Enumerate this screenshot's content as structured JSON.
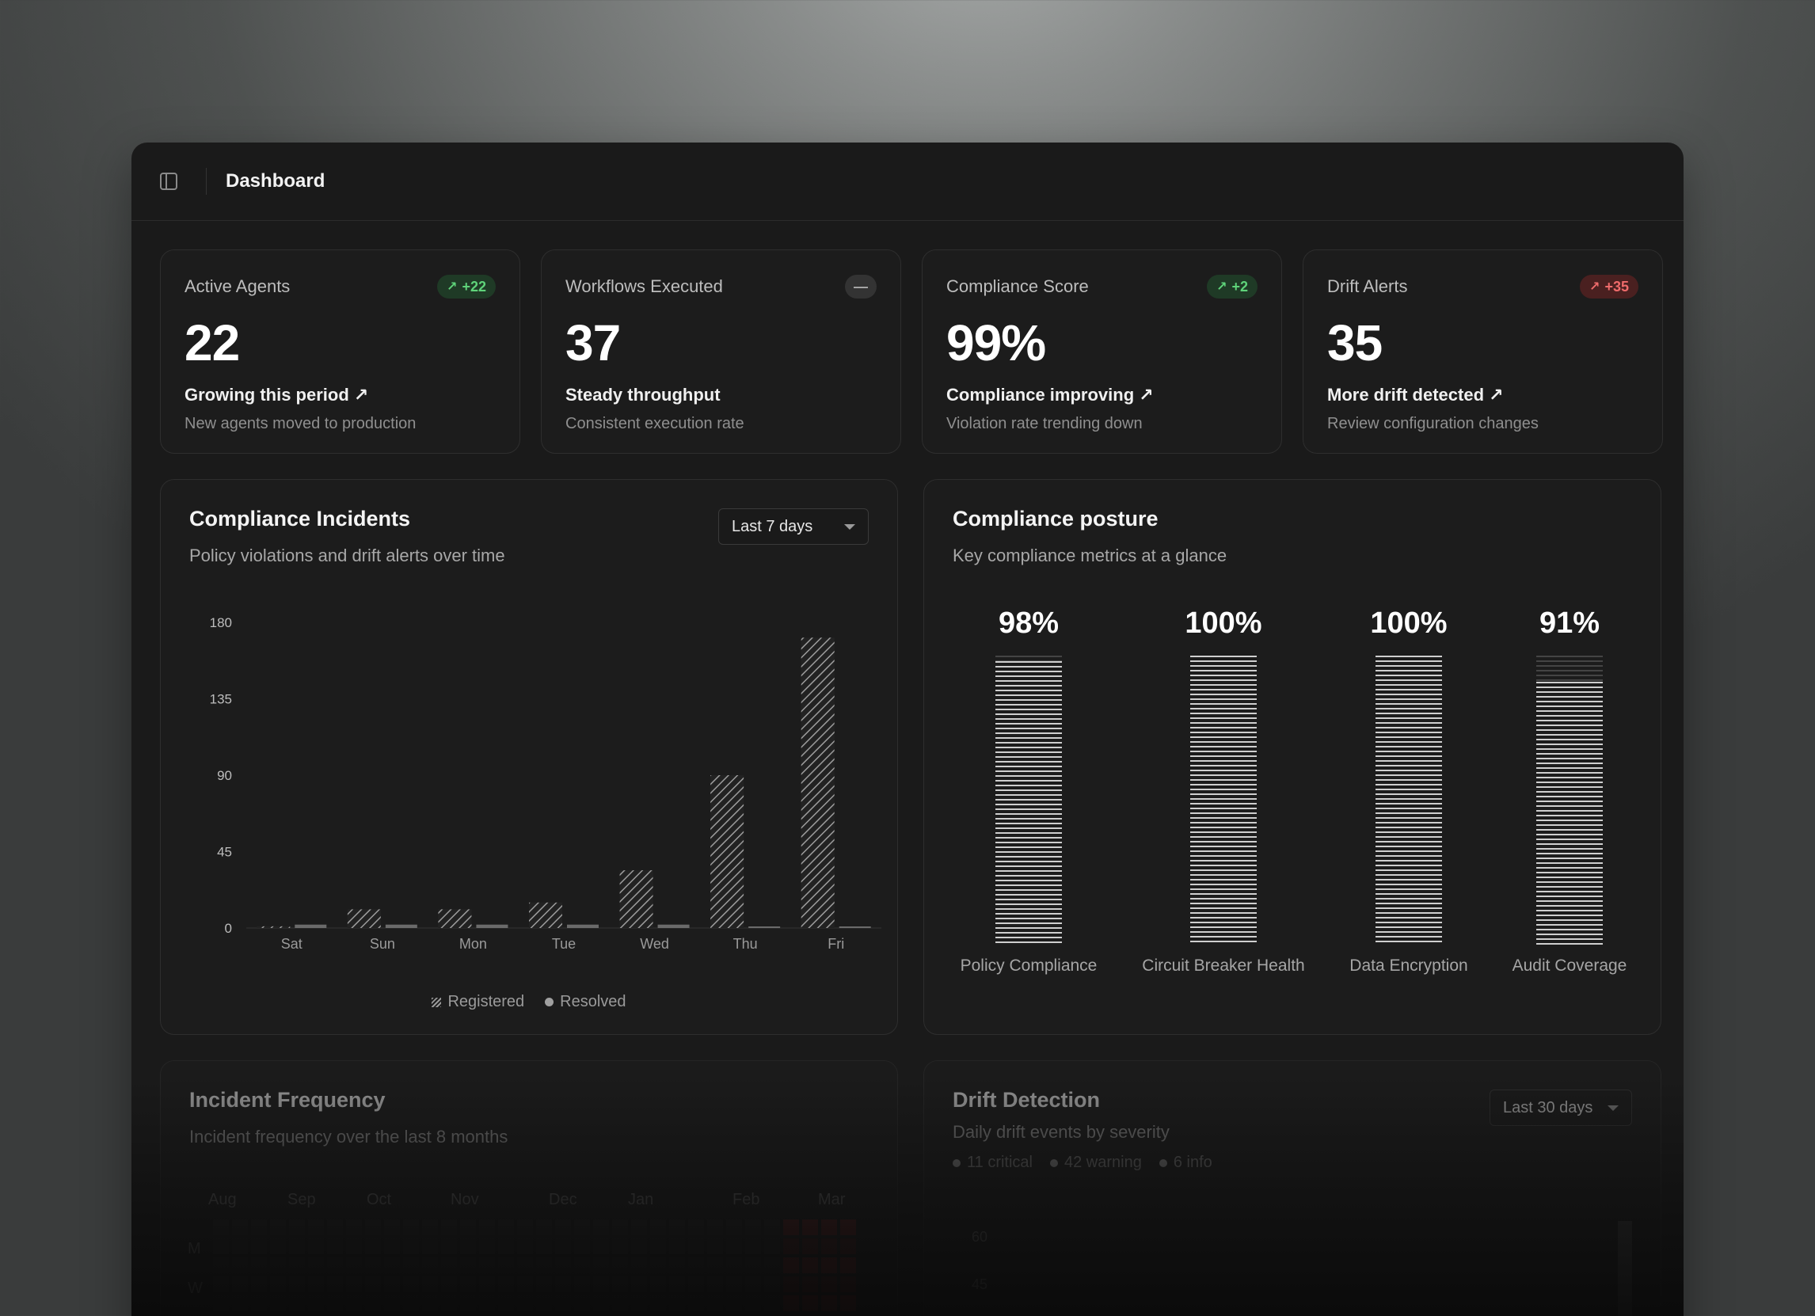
{
  "header": {
    "title": "Dashboard"
  },
  "stats": [
    {
      "label": "Active Agents",
      "badge": "+22",
      "badge_tone": "green",
      "value": "22",
      "trend": "Growing this period",
      "sub": "New agents moved to production"
    },
    {
      "label": "Workflows Executed",
      "badge": "—",
      "badge_tone": "neutral",
      "value": "37",
      "trend": "Steady throughput",
      "sub": "Consistent execution rate"
    },
    {
      "label": "Compliance Score",
      "badge": "+2",
      "badge_tone": "green",
      "value": "99%",
      "trend": "Compliance improving",
      "sub": "Violation rate trending down"
    },
    {
      "label": "Drift Alerts",
      "badge": "+35",
      "badge_tone": "red",
      "value": "35",
      "trend": "More drift detected",
      "sub": "Review configuration changes"
    }
  ],
  "incidents": {
    "title": "Compliance Incidents",
    "subtitle": "Policy violations and drift alerts over time",
    "range": "Last 7 days",
    "legend": {
      "registered": "Registered",
      "resolved": "Resolved"
    }
  },
  "chart_data": {
    "type": "bar",
    "categories": [
      "Sat",
      "Sun",
      "Mon",
      "Tue",
      "Wed",
      "Thu",
      "Fri"
    ],
    "yticks": [
      "0",
      "45",
      "90",
      "135",
      "180"
    ],
    "ylim": [
      0,
      180
    ],
    "series": [
      {
        "name": "Registered",
        "values": [
          1,
          11,
          11,
          15,
          34,
          90,
          171
        ]
      },
      {
        "name": "Resolved",
        "values": [
          2,
          2,
          2,
          2,
          2,
          0,
          0
        ]
      }
    ]
  },
  "posture": {
    "title": "Compliance posture",
    "subtitle": "Key compliance metrics at a glance",
    "metrics": [
      {
        "value": "98%",
        "pct": 98,
        "label": "Policy Compliance"
      },
      {
        "value": "100%",
        "pct": 100,
        "label": "Circuit Breaker Health"
      },
      {
        "value": "100%",
        "pct": 100,
        "label": "Data Encryption"
      },
      {
        "value": "91%",
        "pct": 91,
        "label": "Audit Coverage"
      }
    ]
  },
  "frequency": {
    "title": "Incident Frequency",
    "subtitle": "Incident frequency over the last 8 months",
    "months": [
      "Aug",
      "Sep",
      "Oct",
      "Nov",
      "Dec",
      "Jan",
      "Feb",
      "Mar"
    ],
    "weekdays": [
      "M",
      "W"
    ]
  },
  "drift": {
    "title": "Drift Detection",
    "subtitle": "Daily drift events by severity",
    "range": "Last 30 days",
    "legend": [
      "11 critical",
      "42 warning",
      "6 info"
    ],
    "yticks": [
      "60",
      "45"
    ]
  },
  "colors": {
    "positive": "#5fd37a",
    "negative": "#ef6b6b",
    "card": "#1c1c1c"
  },
  "icons": {
    "sidebar": "sidebar-toggle-icon",
    "trend": "trending-up-icon"
  }
}
